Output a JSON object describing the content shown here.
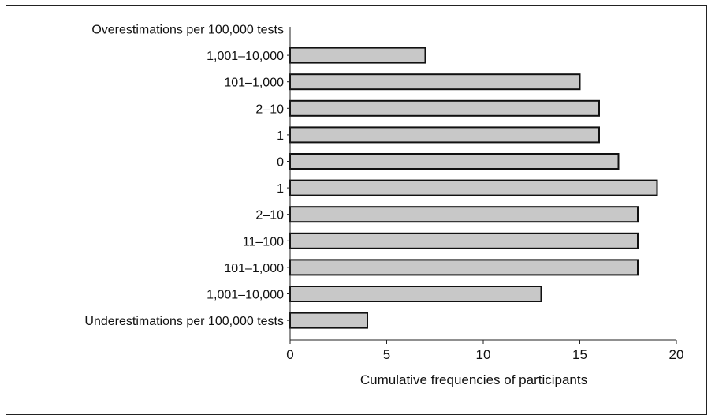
{
  "chart_data": {
    "type": "bar",
    "orientation": "horizontal",
    "categories": [
      "Overestimations per 100,000 tests",
      "1,001–10,000",
      "101–1,000",
      "2–10",
      "1",
      "0",
      "1",
      "2–10",
      "11–100",
      "101–1,000",
      "1,001–10,000",
      "Underestimations per 100,000 tests"
    ],
    "values": [
      null,
      7,
      15,
      16,
      16,
      17,
      19,
      18,
      18,
      18,
      13,
      4
    ],
    "xlabel": "Cumulative frequencies of participants",
    "ylabel": "",
    "xlim": [
      0,
      20
    ],
    "xticks": [
      0,
      5,
      10,
      15,
      20
    ],
    "grid": false,
    "colors": {
      "bar_fill": "#c8c8c8",
      "bar_stroke": "#111111"
    }
  }
}
